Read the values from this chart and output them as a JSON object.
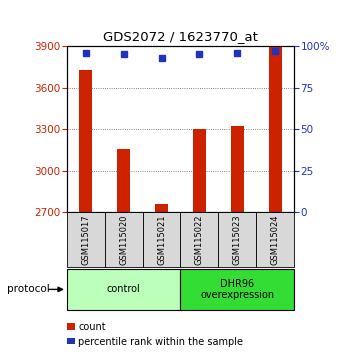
{
  "title": "GDS2072 / 1623770_at",
  "samples": [
    "GSM115017",
    "GSM115020",
    "GSM115021",
    "GSM115022",
    "GSM115023",
    "GSM115024"
  ],
  "counts": [
    3730,
    3160,
    2760,
    3305,
    3320,
    3890
  ],
  "percentiles": [
    96,
    95,
    93,
    95,
    96,
    97
  ],
  "ylim_left": [
    2700,
    3900
  ],
  "ylim_right": [
    0,
    100
  ],
  "yticks_left": [
    2700,
    3000,
    3300,
    3600,
    3900
  ],
  "yticks_right": [
    0,
    25,
    50,
    75,
    100
  ],
  "ytick_labels_right": [
    "0",
    "25",
    "50",
    "75",
    "100%"
  ],
  "bar_color": "#cc2200",
  "dot_color": "#2233bb",
  "grid_color": "#555555",
  "groups": [
    {
      "label": "control",
      "start": 0,
      "end": 3,
      "color": "#bbffbb"
    },
    {
      "label": "DHR96\noverexpression",
      "start": 3,
      "end": 6,
      "color": "#33dd33"
    }
  ],
  "protocol_label": "protocol",
  "legend_items": [
    {
      "color": "#cc2200",
      "label": "count"
    },
    {
      "color": "#2233bb",
      "label": "percentile rank within the sample"
    }
  ],
  "background_color": "#ffffff",
  "plot_bg_color": "#ffffff",
  "tick_color_left": "#cc2200",
  "tick_color_right": "#2233bb",
  "bar_width": 0.35
}
